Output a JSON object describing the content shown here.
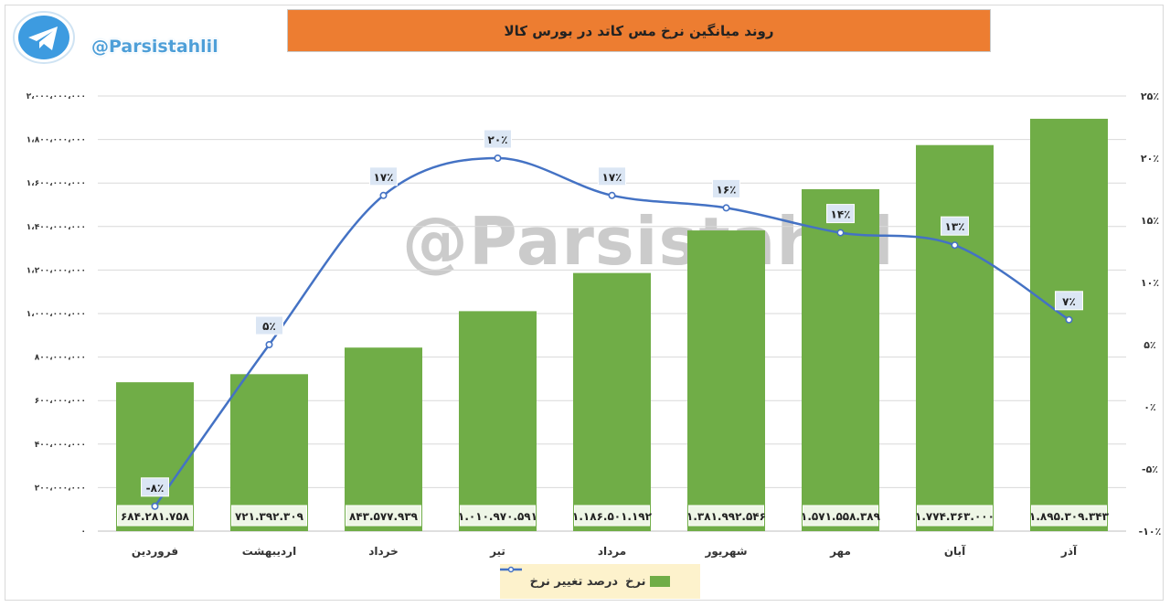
{
  "branding": {
    "handle": "@Parsistahlil",
    "icon": "telegram-icon"
  },
  "watermark": "@Parsistahlil",
  "colors": {
    "bar": "#70ad47",
    "line": "#4472c4",
    "title_bg": "#ed7d31",
    "legend_bg": "#fdf2cc",
    "label_bg": "#eef6e6"
  },
  "chart_data": {
    "type": "bar",
    "title": "روند میانگین نرخ مس کاتد در بورس کالا",
    "categories": [
      "فروردین",
      "اردیبهشت",
      "خرداد",
      "تیر",
      "مرداد",
      "شهریور",
      "مهر",
      "آبان",
      "آذر"
    ],
    "series": [
      {
        "name": "نرخ",
        "type": "bar",
        "axis": "left",
        "values": [
          684281758,
          721392309,
          843577939,
          1010970591,
          1186501192,
          1381992546,
          1571558389,
          1774363000,
          1895309343
        ],
        "labels": [
          "۶۸۴.۲۸۱.۷۵۸",
          "۷۲۱.۳۹۲.۳۰۹",
          "۸۴۳.۵۷۷.۹۳۹",
          "۱.۰۱۰.۹۷۰.۵۹۱",
          "۱.۱۸۶.۵۰۱.۱۹۲",
          "۱.۳۸۱.۹۹۲.۵۴۶",
          "۱.۵۷۱.۵۵۸.۳۸۹",
          "۱.۷۷۴.۳۶۳.۰۰۰",
          "۱.۸۹۵.۳۰۹.۳۴۳"
        ]
      },
      {
        "name": "درصد تغییر نرخ",
        "type": "line",
        "axis": "right",
        "values": [
          -8,
          5,
          17,
          20,
          17,
          16,
          14,
          13,
          7
        ],
        "labels": [
          "-۸٪",
          "۵٪",
          "۱۷٪",
          "۲۰٪",
          "۱۷٪",
          "۱۶٪",
          "۱۴٪",
          "۱۳٪",
          "۷٪"
        ]
      }
    ],
    "ylim": [
      0,
      2000000000
    ],
    "y2lim": [
      -10,
      25
    ],
    "yticks": [
      0,
      200000000,
      400000000,
      600000000,
      800000000,
      1000000000,
      1200000000,
      1400000000,
      1600000000,
      1800000000,
      2000000000
    ],
    "ytick_labels": [
      "۰",
      "۲۰۰،۰۰۰،۰۰۰",
      "۴۰۰،۰۰۰،۰۰۰",
      "۶۰۰،۰۰۰،۰۰۰",
      "۸۰۰،۰۰۰،۰۰۰",
      "۱،۰۰۰،۰۰۰،۰۰۰",
      "۱،۲۰۰،۰۰۰،۰۰۰",
      "۱،۴۰۰،۰۰۰،۰۰۰",
      "۱،۶۰۰،۰۰۰،۰۰۰",
      "۱،۸۰۰،۰۰۰،۰۰۰",
      "۲،۰۰۰،۰۰۰،۰۰۰"
    ],
    "y2ticks": [
      -10,
      -5,
      0,
      5,
      10,
      15,
      20,
      25
    ],
    "y2tick_labels": [
      "-۱۰٪",
      "-۵٪",
      "۰٪",
      "۵٪",
      "۱۰٪",
      "۱۵٪",
      "۲۰٪",
      "۲۵٪"
    ],
    "grid": true,
    "legend_position": "bottom"
  }
}
